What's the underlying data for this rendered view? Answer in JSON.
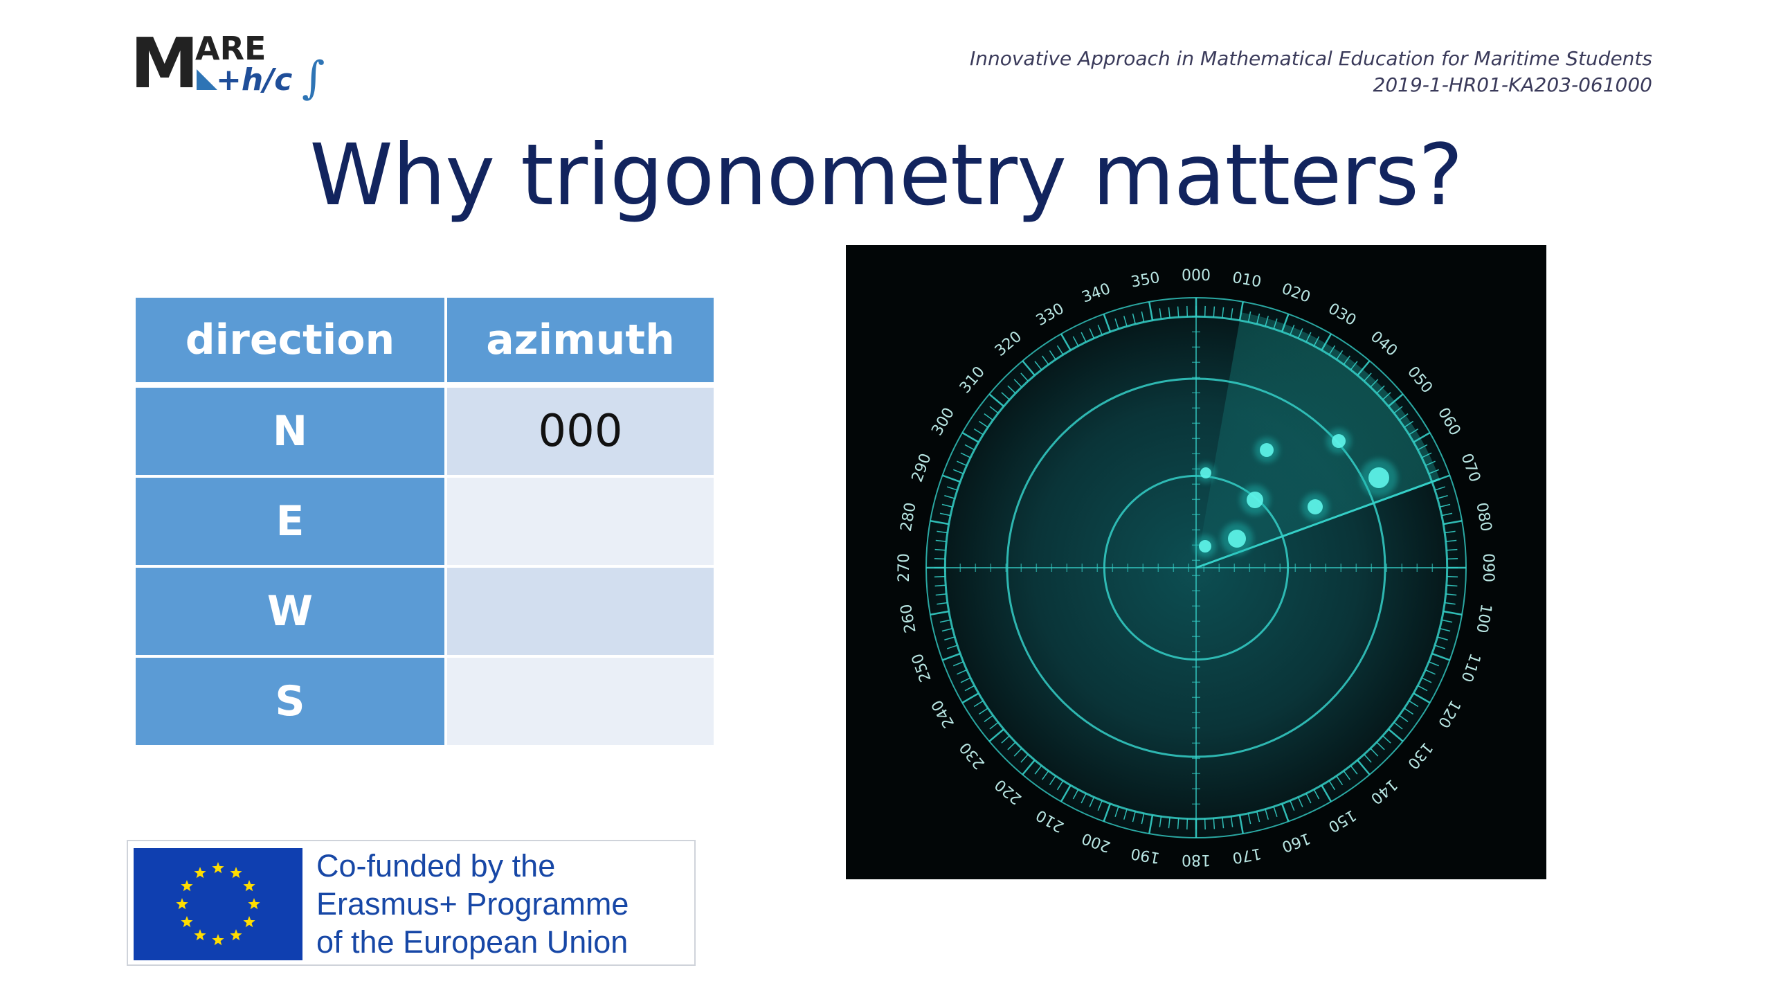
{
  "logo": {
    "big_letter": "M",
    "top_letters": "ARE",
    "bottom_letters": "+h/c",
    "integral": "∫"
  },
  "project": {
    "line1": "Innovative Approach in Mathematical Education for Maritime Students",
    "line2": "2019-1-HR01-KA203-061000"
  },
  "title": "Why trigonometry matters?",
  "table": {
    "headers": [
      "direction",
      "azimuth"
    ],
    "rows": [
      {
        "direction": "N",
        "azimuth": "000"
      },
      {
        "direction": "E",
        "azimuth": ""
      },
      {
        "direction": "W",
        "azimuth": ""
      },
      {
        "direction": "S",
        "azimuth": ""
      }
    ]
  },
  "eu_banner": {
    "line1": "Co-funded by the",
    "line2": "Erasmus+ Programme",
    "line3": "of the European Union"
  },
  "radar": {
    "scale_labels": [
      "000",
      "010",
      "020",
      "030",
      "040",
      "050",
      "060",
      "070",
      "080",
      "090",
      "100",
      "110",
      "120",
      "130",
      "140",
      "150",
      "160",
      "170",
      "180",
      "190",
      "200",
      "210",
      "220",
      "230",
      "240",
      "250",
      "260",
      "270",
      "280",
      "290",
      "300",
      "310",
      "320",
      "330",
      "340",
      "350"
    ],
    "colors": {
      "glow": "#1fb8b0",
      "line": "#35d0c8",
      "bg": "#020607",
      "blip": "#5ff5ea"
    }
  },
  "colors": {
    "title": "#12245e",
    "table_header": "#5b9bd5",
    "row_a": "#d2deef",
    "row_b": "#eaeff7",
    "eu_blue": "#0f3fb0",
    "eu_text": "#1747a6"
  }
}
